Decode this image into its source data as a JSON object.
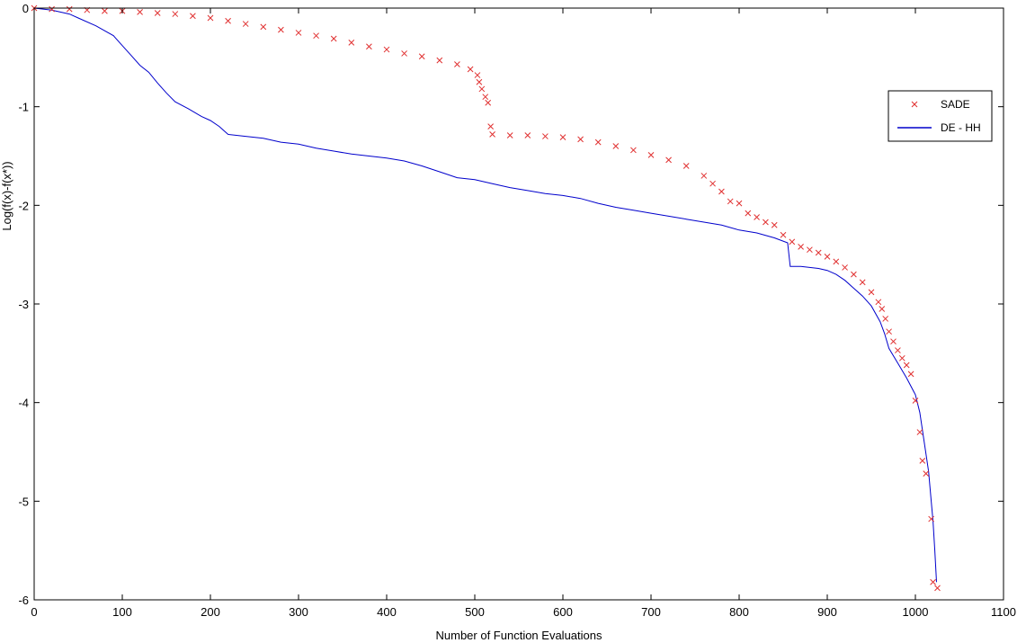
{
  "chart_data": {
    "type": "line",
    "title": "",
    "xlabel": "Number of Function Evaluations",
    "ylabel": "Log(f(x)-f(x*))",
    "xlim": [
      0,
      1100
    ],
    "ylim": [
      -6,
      0
    ],
    "x_ticks": [
      0,
      100,
      200,
      300,
      400,
      500,
      600,
      700,
      800,
      900,
      1000,
      1100
    ],
    "y_ticks": [
      0,
      -1,
      -2,
      -3,
      -4,
      -5,
      -6
    ],
    "x_tick_labels": [
      "0",
      "100",
      "200",
      "300",
      "400",
      "500",
      "600",
      "700",
      "800",
      "900",
      "1000",
      "1100"
    ],
    "y_tick_labels": [
      "0",
      "-1",
      "-2",
      "-3",
      "-4",
      "-5",
      "-6"
    ],
    "grid": false,
    "legend_position": "right",
    "series": [
      {
        "name": "SADE",
        "style": "markers",
        "marker": "x",
        "color": "#e03030",
        "x": [
          0,
          20,
          40,
          60,
          80,
          100,
          120,
          140,
          160,
          180,
          200,
          220,
          240,
          260,
          280,
          300,
          320,
          340,
          360,
          380,
          400,
          420,
          440,
          460,
          480,
          495,
          503,
          505,
          508,
          512,
          515,
          518,
          520,
          540,
          560,
          580,
          600,
          620,
          640,
          660,
          680,
          700,
          720,
          740,
          760,
          770,
          780,
          790,
          800,
          810,
          820,
          830,
          840,
          850,
          860,
          870,
          880,
          890,
          900,
          910,
          920,
          930,
          940,
          950,
          958,
          962,
          966,
          970,
          975,
          980,
          985,
          990,
          995,
          1000,
          1005,
          1008,
          1012,
          1018,
          1020,
          1025
        ],
        "y": [
          0,
          -0.01,
          -0.01,
          -0.02,
          -0.03,
          -0.03,
          -0.04,
          -0.05,
          -0.06,
          -0.08,
          -0.1,
          -0.13,
          -0.16,
          -0.19,
          -0.22,
          -0.25,
          -0.28,
          -0.31,
          -0.35,
          -0.39,
          -0.42,
          -0.46,
          -0.49,
          -0.53,
          -0.57,
          -0.62,
          -0.68,
          -0.75,
          -0.82,
          -0.9,
          -0.96,
          -1.2,
          -1.28,
          -1.29,
          -1.29,
          -1.3,
          -1.31,
          -1.33,
          -1.36,
          -1.4,
          -1.44,
          -1.49,
          -1.54,
          -1.6,
          -1.7,
          -1.78,
          -1.86,
          -1.96,
          -1.98,
          -2.08,
          -2.12,
          -2.17,
          -2.2,
          -2.3,
          -2.37,
          -2.42,
          -2.45,
          -2.48,
          -2.52,
          -2.57,
          -2.63,
          -2.7,
          -2.78,
          -2.88,
          -2.98,
          -3.05,
          -3.15,
          -3.28,
          -3.38,
          -3.47,
          -3.55,
          -3.62,
          -3.71,
          -3.98,
          -4.3,
          -4.59,
          -4.72,
          -5.18,
          -5.82,
          -5.88
        ]
      },
      {
        "name": "DE - HH",
        "style": "line",
        "color": "#0000cc",
        "x": [
          0,
          20,
          40,
          50,
          70,
          90,
          100,
          110,
          120,
          130,
          140,
          150,
          160,
          175,
          190,
          200,
          210,
          220,
          240,
          260,
          280,
          300,
          320,
          340,
          360,
          380,
          400,
          420,
          440,
          460,
          480,
          500,
          520,
          540,
          560,
          580,
          600,
          620,
          640,
          660,
          680,
          700,
          720,
          740,
          760,
          780,
          800,
          820,
          840,
          855,
          858,
          870,
          880,
          890,
          900,
          910,
          920,
          930,
          940,
          950,
          960,
          965,
          970,
          980,
          990,
          1000,
          1005,
          1010,
          1015,
          1018,
          1020,
          1022,
          1024
        ],
        "y": [
          0,
          -0.02,
          -0.06,
          -0.1,
          -0.18,
          -0.28,
          -0.38,
          -0.48,
          -0.58,
          -0.65,
          -0.76,
          -0.86,
          -0.95,
          -1.02,
          -1.1,
          -1.14,
          -1.2,
          -1.28,
          -1.3,
          -1.32,
          -1.36,
          -1.38,
          -1.42,
          -1.45,
          -1.48,
          -1.5,
          -1.52,
          -1.55,
          -1.6,
          -1.66,
          -1.72,
          -1.74,
          -1.78,
          -1.82,
          -1.85,
          -1.88,
          -1.9,
          -1.93,
          -1.98,
          -2.02,
          -2.05,
          -2.08,
          -2.11,
          -2.14,
          -2.17,
          -2.2,
          -2.25,
          -2.28,
          -2.33,
          -2.38,
          -2.62,
          -2.62,
          -2.63,
          -2.64,
          -2.66,
          -2.7,
          -2.76,
          -2.84,
          -2.92,
          -3.02,
          -3.18,
          -3.3,
          -3.45,
          -3.6,
          -3.75,
          -3.92,
          -4.1,
          -4.4,
          -4.7,
          -5.0,
          -5.2,
          -5.5,
          -5.82
        ]
      }
    ]
  }
}
